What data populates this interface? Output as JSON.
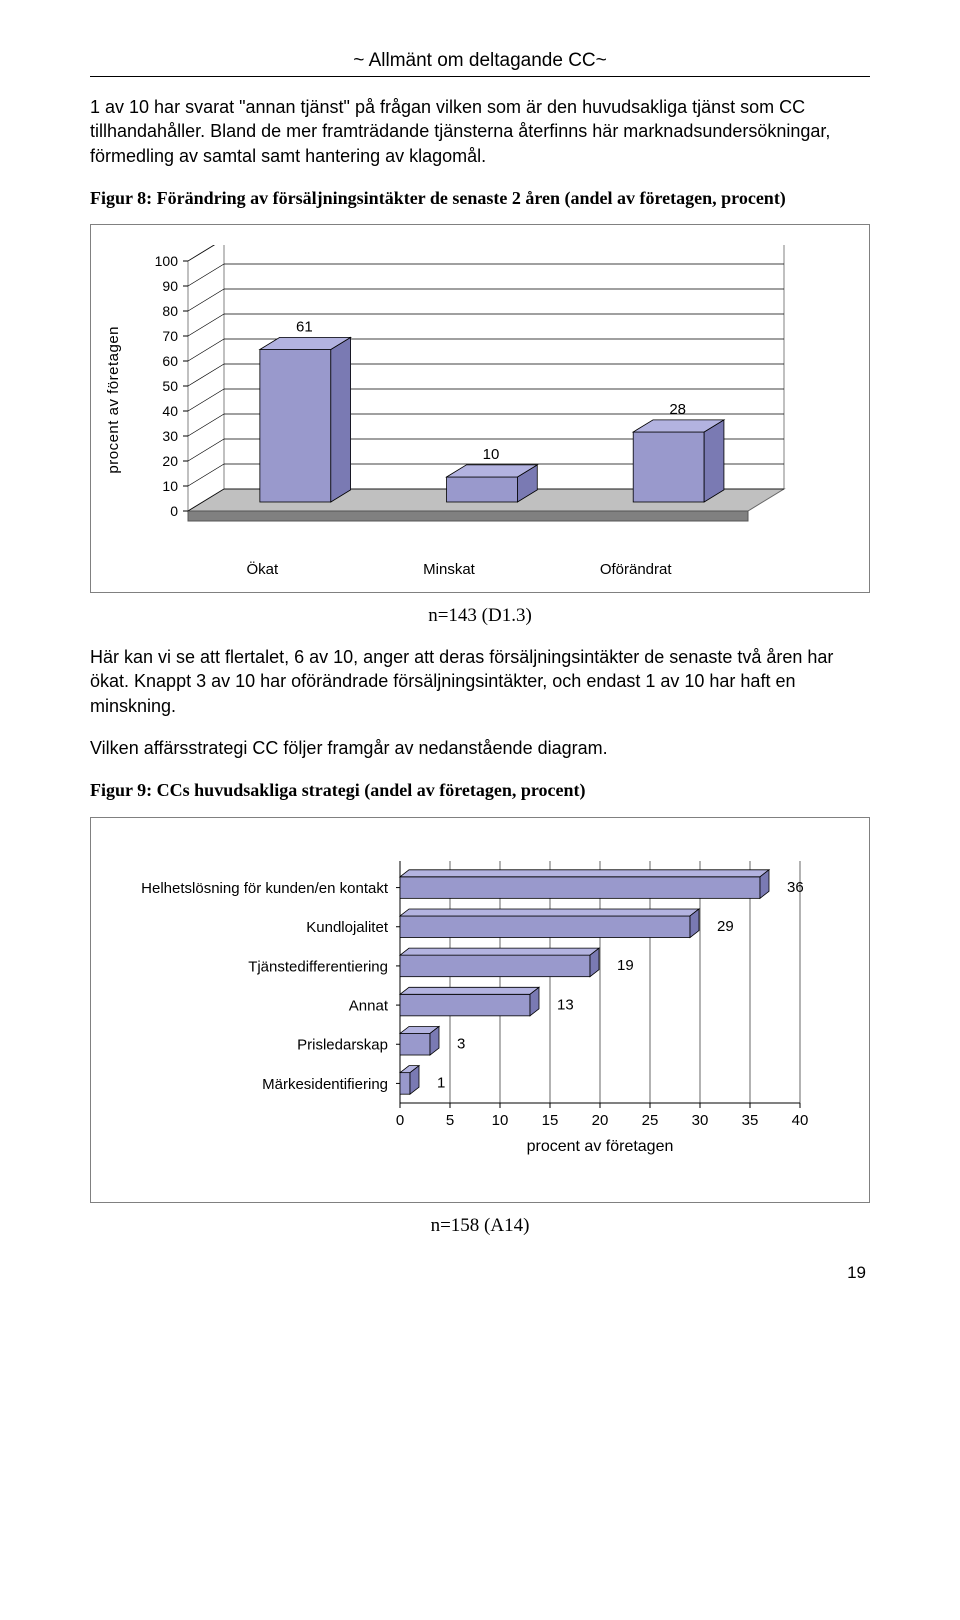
{
  "header": {
    "title": "~ Allmänt om deltagande CC~"
  },
  "para1": "1 av 10 har svarat \"annan tjänst\" på frågan vilken som är den huvudsakliga tjänst som CC tillhandahåller. Bland de mer framträdande tjänsterna återfinns här marknadsundersökningar, förmedling av samtal samt hantering av klagomål.",
  "fig8_caption": "Figur 8: Förändring av försäljningsintäkter de senaste 2 åren (andel av företagen, procent)",
  "vchart": {
    "type": "bar-3d-vertical",
    "ylabel": "procent av företagen",
    "ymax": 100,
    "ytick_step": 10,
    "categories": [
      "Ökat",
      "Minskat",
      "Oförändrat"
    ],
    "values": [
      61,
      10,
      28
    ],
    "bar_face": "#9999cc",
    "bar_top": "#b3b3e0",
    "bar_side": "#7a7ab3",
    "floor_fill": "#c0c0c0",
    "floor_front": "#808080",
    "wall_stroke": "#808080",
    "grid_stroke": "#000000",
    "value_fontsize": 15
  },
  "note1": "n=143 (D1.3)",
  "para2": "Här kan vi se att flertalet, 6 av 10, anger att deras försäljningsintäkter de senaste två åren har ökat. Knappt 3 av 10 har oförändrade försäljningsintäkter, och endast 1 av 10 har haft en minskning.",
  "para3": "Vilken affärsstrategi CC följer framgår av nedanstående diagram.",
  "fig9_caption": "Figur 9: CCs huvudsakliga strategi (andel av företagen, procent)",
  "hchart": {
    "type": "bar-3d-horizontal",
    "xlabel": "procent av företagen",
    "xmax": 40,
    "xtick_step": 5,
    "labels": [
      "Helhetslösning för kunden/en kontakt",
      "Kundlojalitet",
      "Tjänstedifferentiering",
      "Annat",
      "Prisledarskap",
      "Märkesidentifiering"
    ],
    "values": [
      36,
      29,
      19,
      13,
      3,
      1
    ],
    "bar_face": "#9999cc",
    "bar_top": "#b3b3e0",
    "bar_side": "#7a7ab3",
    "grid_stroke": "#000000",
    "axis_stroke": "#000000",
    "value_fontsize": 15
  },
  "note2": "n=158 (A14)",
  "page_number": "19"
}
